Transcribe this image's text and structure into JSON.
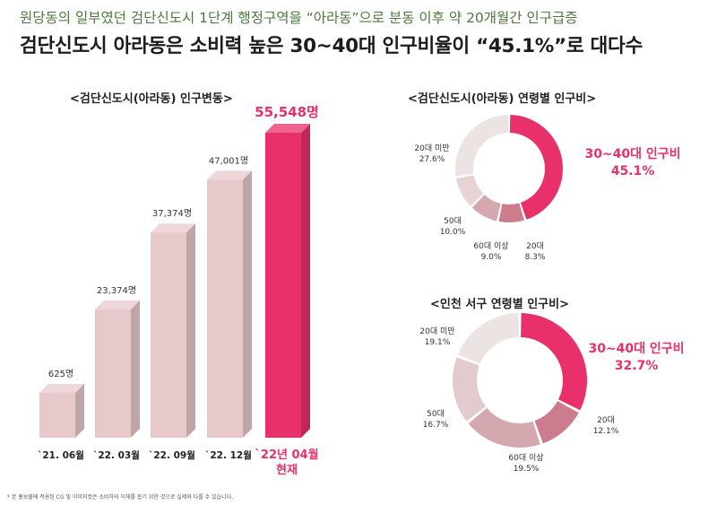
{
  "header": {
    "subtitle": "원당동의 일부였던 검단신도시 1단계 행정구역을 “아라동”으로 분동 이후 약 20개월간 인구급증",
    "headline": "검단신도시 아라동은 소비력 높은 30~40대 인구비율이 “45.1%”로 대다수"
  },
  "footnote": "* 본 홍보물에 적용된 CG 및 이미지컷은 소비자의 이해를 돕기 위한 것으로 실제와 다를 수 있습니다.",
  "colors": {
    "accent": "#e8306a",
    "bar_light": "#e8c9cb",
    "seg_light": "#ece4e3",
    "seg_pink": "#cc7c8c",
    "seg_mauve": "#d4a8ae",
    "text_accent": "#e8306a"
  },
  "chart_data": [
    {
      "type": "bar",
      "title": "<검단신도시(아라동) 인구변동>",
      "categories": [
        "`21. 06월",
        "`22. 03월",
        "`22. 09월",
        "`22. 12월",
        "`22년 04월\n현재"
      ],
      "values": [
        625,
        23374,
        37374,
        47001,
        55548
      ],
      "value_labels": [
        "625명",
        "23,374명",
        "37,374명",
        "47,001명",
        "55,548명"
      ],
      "unit": "명"
    },
    {
      "type": "pie",
      "title": "<검단신도시(아라동) 연령별 인구비>",
      "segments": [
        {
          "name": "30~40대 인구비",
          "value": 45.1,
          "label": "45.1%"
        },
        {
          "name": "20대",
          "value": 8.3,
          "label": "8.3%"
        },
        {
          "name": "60대 이상",
          "value": 9.0,
          "label": "9.0%"
        },
        {
          "name": "50대",
          "value": 10.0,
          "label": "10.0%"
        },
        {
          "name": "20대 미만",
          "value": 27.6,
          "label": "27.6%"
        }
      ]
    },
    {
      "type": "pie",
      "title": "<인천 서구 연령별 인구비>",
      "segments": [
        {
          "name": "30~40대 인구비",
          "value": 32.7,
          "label": "32.7%"
        },
        {
          "name": "20대",
          "value": 12.1,
          "label": "12.1%"
        },
        {
          "name": "60대 이상",
          "value": 19.5,
          "label": "19.5%"
        },
        {
          "name": "50대",
          "value": 16.7,
          "label": "16.7%"
        },
        {
          "name": "20대 미만",
          "value": 19.1,
          "label": "19.1%"
        }
      ]
    }
  ]
}
